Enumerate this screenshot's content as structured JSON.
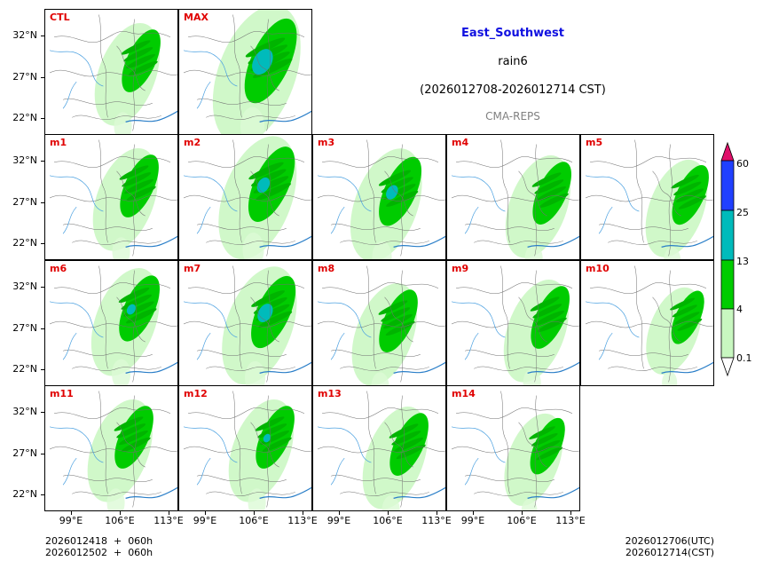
{
  "title": {
    "region": "East_Southwest",
    "variable": "rain6",
    "period": "(2026012708-2026012714 CST)",
    "model": "CMA-REPS",
    "region_color": "#1010e0",
    "model_color": "#808080"
  },
  "panels": [
    "CTL",
    "MAX",
    "m1",
    "m2",
    "m3",
    "m4",
    "m5",
    "m6",
    "m7",
    "m8",
    "m9",
    "m10",
    "m11",
    "m12",
    "m13",
    "m14"
  ],
  "panel_label_color": "#e00000",
  "axes": {
    "y_ticks": [
      "32°N",
      "27°N",
      "22°N"
    ],
    "x_ticks": [
      "99°E",
      "106°E",
      "113°E"
    ]
  },
  "colorbar": {
    "levels": [
      "0.1",
      "4",
      "13",
      "25",
      "60"
    ],
    "colors": [
      "#ffffff",
      "#c8f7c0",
      "#00cc00",
      "#00bbbb",
      "#2040ff",
      "#e0106a"
    ]
  },
  "footer": {
    "left_line1": "2026012418  +  060h",
    "left_line2": "2026012502  +  060h",
    "right_line1": "2026012706(UTC)",
    "right_line2": "2026012714(CST)"
  }
}
